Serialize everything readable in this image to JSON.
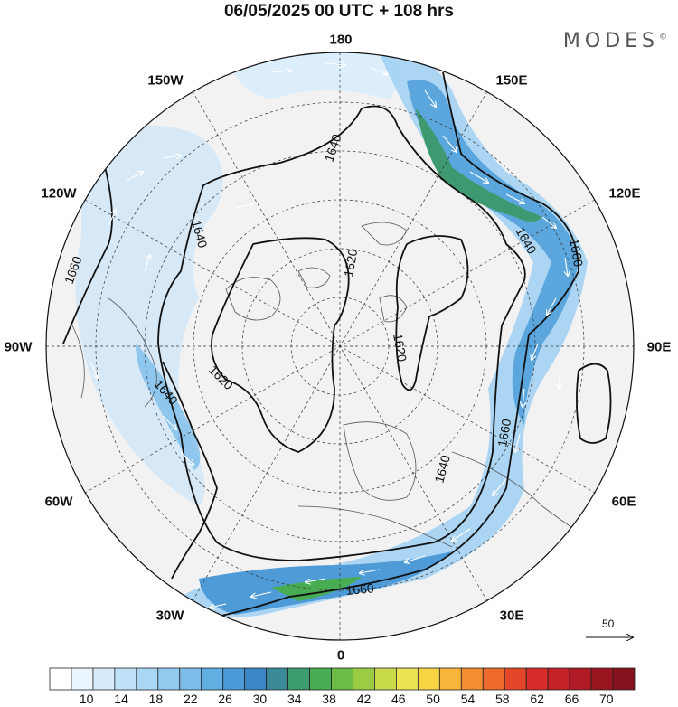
{
  "header": {
    "title": "06/05/2025  00 UTC  + 108 hrs",
    "brand": "MODES",
    "brand_mark": "©"
  },
  "longitude_labels": [
    "180",
    "150E",
    "120E",
    "90E",
    "60E",
    "30E",
    "0",
    "30W",
    "60W",
    "90W",
    "120W",
    "150W"
  ],
  "contour_labels": [
    "1640",
    "1640",
    "1640",
    "1660",
    "1660",
    "1620",
    "1620",
    "1620",
    "1640",
    "1660",
    "1640",
    "1660",
    "1660",
    "1660"
  ],
  "reference_vector": {
    "label": "50"
  },
  "colorbar": {
    "ticks": [
      "10",
      "14",
      "18",
      "22",
      "26",
      "30",
      "34",
      "38",
      "42",
      "46",
      "50",
      "54",
      "58",
      "62",
      "66",
      "70"
    ],
    "colors": [
      "#ffffff",
      "#eaf5fd",
      "#d6ecfb",
      "#c0e2f8",
      "#a9d6f4",
      "#93caf0",
      "#7cbdea",
      "#62ade2",
      "#4b99d6",
      "#3d86c6",
      "#3a8a9a",
      "#3c9c6e",
      "#48ad52",
      "#6cbd45",
      "#9ccb44",
      "#c8d94a",
      "#ece453",
      "#f7d443",
      "#f7b53b",
      "#f38f32",
      "#ee6a2c",
      "#e44629",
      "#d62d2a",
      "#c52128",
      "#b01a24",
      "#9a1520",
      "#85121c"
    ]
  }
}
